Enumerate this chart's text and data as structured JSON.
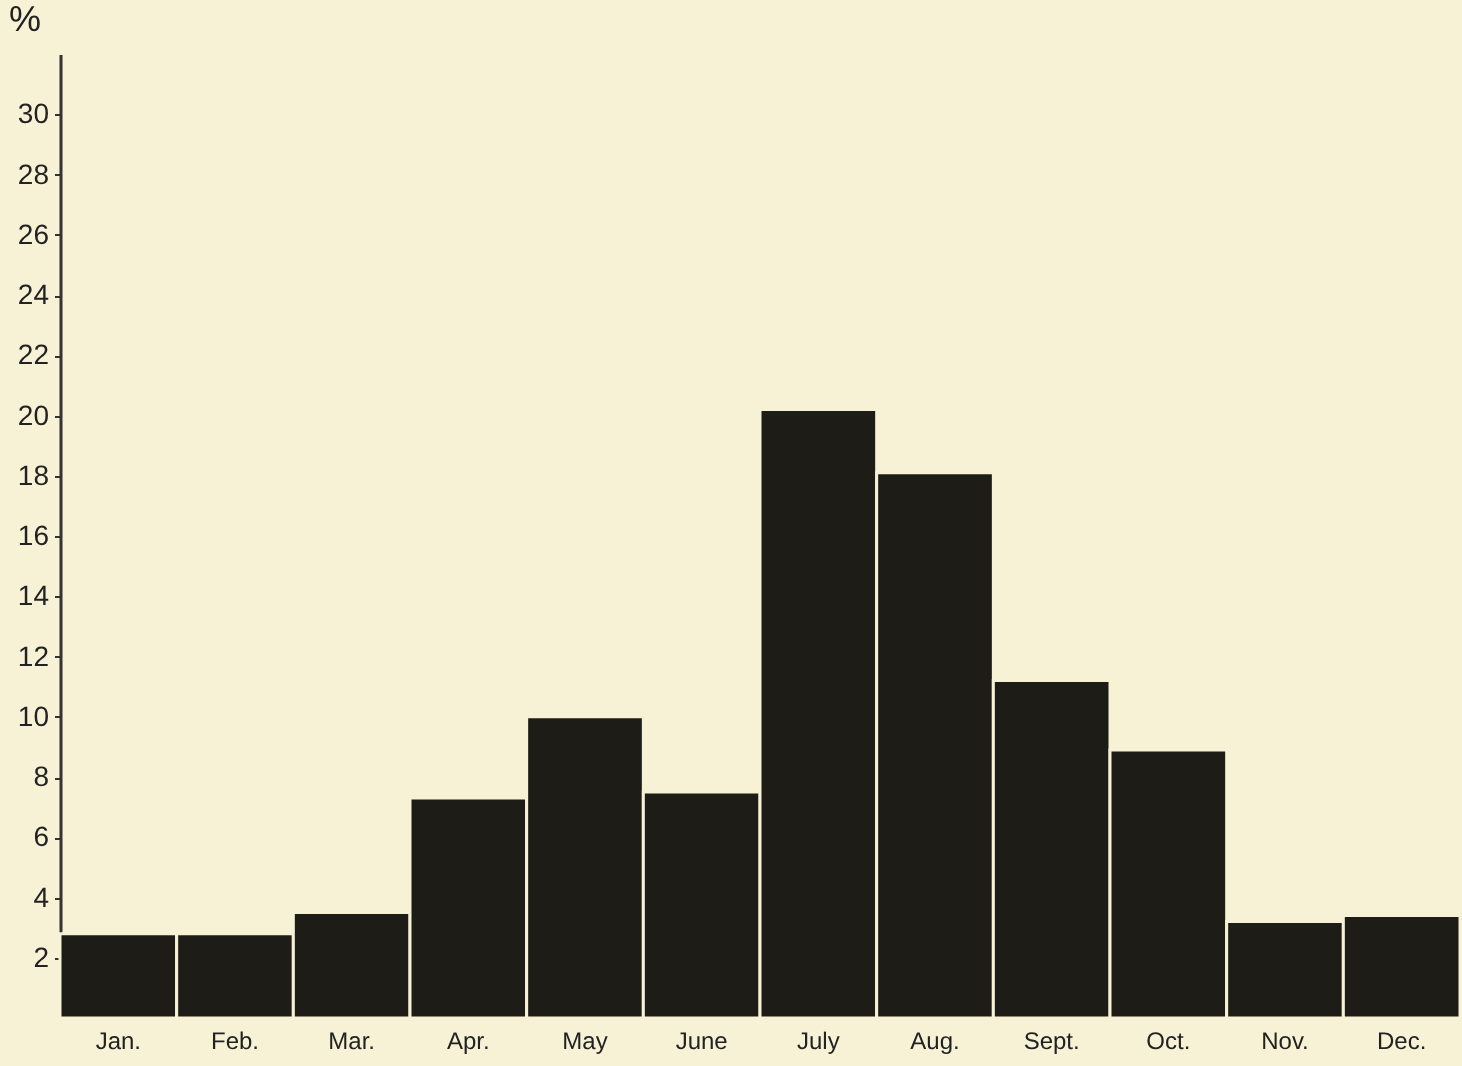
{
  "chart_data": {
    "type": "bar",
    "ylabel": "%",
    "categories": [
      "Jan.",
      "Feb.",
      "Mar.",
      "Apr.",
      "May",
      "June",
      "July",
      "Aug.",
      "Sept.",
      "Oct.",
      "Nov.",
      "Dec."
    ],
    "values": [
      2.8,
      2.8,
      3.5,
      7.3,
      10.0,
      7.5,
      20.2,
      18.1,
      11.2,
      8.9,
      3.2,
      3.4
    ],
    "color": "#1e1c16",
    "ylim": [
      0,
      32
    ],
    "yticks": [
      2,
      4,
      6,
      8,
      10,
      12,
      14,
      16,
      18,
      20,
      22,
      24,
      26,
      28,
      30
    ],
    "grid": false
  }
}
